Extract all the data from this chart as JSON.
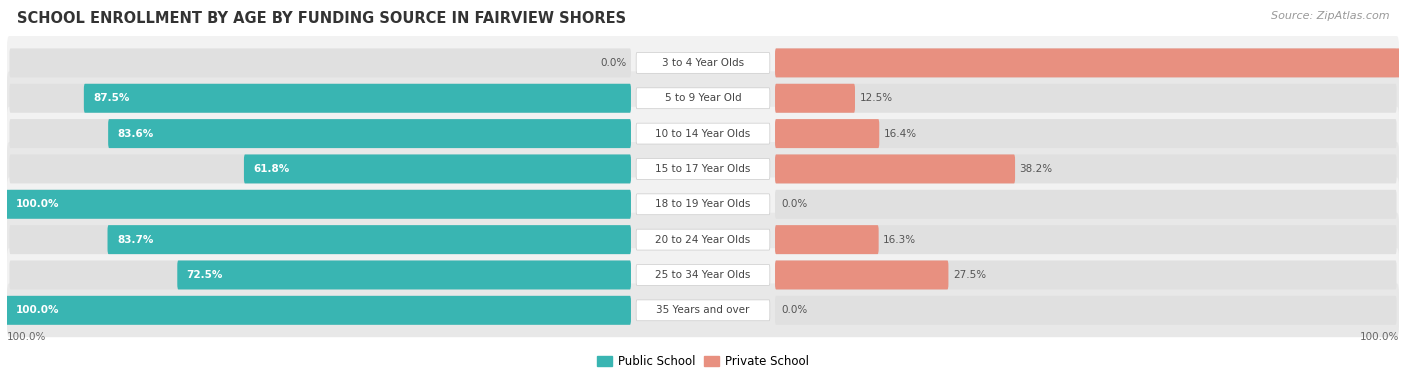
{
  "title": "SCHOOL ENROLLMENT BY AGE BY FUNDING SOURCE IN FAIRVIEW SHORES",
  "source": "Source: ZipAtlas.com",
  "categories": [
    "3 to 4 Year Olds",
    "5 to 9 Year Old",
    "10 to 14 Year Olds",
    "15 to 17 Year Olds",
    "18 to 19 Year Olds",
    "20 to 24 Year Olds",
    "25 to 34 Year Olds",
    "35 Years and over"
  ],
  "public_pct": [
    0.0,
    87.5,
    83.6,
    61.8,
    100.0,
    83.7,
    72.5,
    100.0
  ],
  "private_pct": [
    100.0,
    12.5,
    16.4,
    38.2,
    0.0,
    16.3,
    27.5,
    0.0
  ],
  "public_color": "#39B5B2",
  "private_color": "#E89080",
  "row_bg_even": "#F2F2F2",
  "row_bg_odd": "#E8E8E8",
  "bar_bg_color": "#E0E0E0",
  "title_fontsize": 10.5,
  "label_fontsize": 7.5,
  "value_fontsize": 7.5,
  "legend_fontsize": 8.5,
  "source_fontsize": 8
}
